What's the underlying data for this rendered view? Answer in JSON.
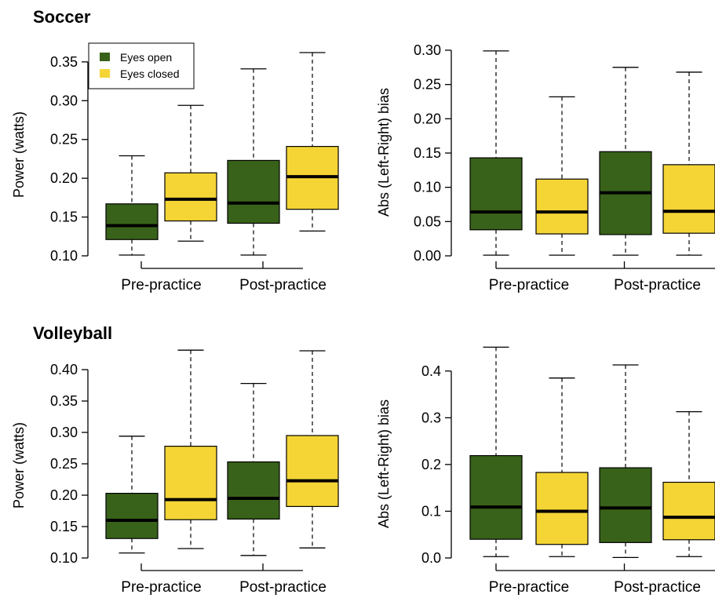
{
  "sections": [
    {
      "title": "Soccer"
    },
    {
      "title": "Volleyball"
    }
  ],
  "colors": {
    "eyes_open": "#386219",
    "eyes_closed": "#f5d535"
  },
  "legend": {
    "eyes_open": "Eyes open",
    "eyes_closed": "Eyes closed"
  },
  "chart_data": [
    {
      "type": "box",
      "section": "Soccer",
      "xlabel": "",
      "ylabel": "Power (watts)",
      "ylim": [
        0.1,
        0.36
      ],
      "yticks": [
        "0.10",
        "0.15",
        "0.20",
        "0.25",
        "0.30",
        "0.35"
      ],
      "categories": [
        "Pre-practice",
        "Post-practice"
      ],
      "legend_position": "top-left",
      "series": [
        {
          "name": "Eyes open",
          "boxes": [
            {
              "min": 0.101,
              "q1": 0.121,
              "median": 0.139,
              "q3": 0.167,
              "max": 0.229
            },
            {
              "min": 0.101,
              "q1": 0.142,
              "median": 0.168,
              "q3": 0.223,
              "max": 0.341
            }
          ]
        },
        {
          "name": "Eyes closed",
          "boxes": [
            {
              "min": 0.119,
              "q1": 0.145,
              "median": 0.173,
              "q3": 0.207,
              "max": 0.294
            },
            {
              "min": 0.132,
              "q1": 0.16,
              "median": 0.202,
              "q3": 0.241,
              "max": 0.362
            }
          ]
        }
      ]
    },
    {
      "type": "box",
      "section": "Soccer",
      "xlabel": "",
      "ylabel": "Abs (Left-Right) bias",
      "ylim": [
        0.0,
        0.3
      ],
      "yticks": [
        "0.00",
        "0.05",
        "0.10",
        "0.15",
        "0.20",
        "0.25",
        "0.30"
      ],
      "categories": [
        "Pre-practice",
        "Post-practice"
      ],
      "series": [
        {
          "name": "Eyes open",
          "boxes": [
            {
              "min": 0.001,
              "q1": 0.038,
              "median": 0.064,
              "q3": 0.143,
              "max": 0.299
            },
            {
              "min": 0.001,
              "q1": 0.031,
              "median": 0.092,
              "q3": 0.152,
              "max": 0.275
            }
          ]
        },
        {
          "name": "Eyes closed",
          "boxes": [
            {
              "min": 0.001,
              "q1": 0.032,
              "median": 0.064,
              "q3": 0.112,
              "max": 0.232
            },
            {
              "min": 0.001,
              "q1": 0.033,
              "median": 0.065,
              "q3": 0.133,
              "max": 0.268
            }
          ]
        }
      ]
    },
    {
      "type": "box",
      "section": "Volleyball",
      "xlabel": "",
      "ylabel": "Power (watts)",
      "ylim": [
        0.1,
        0.43
      ],
      "yticks": [
        "0.10",
        "0.15",
        "0.20",
        "0.25",
        "0.30",
        "0.35",
        "0.40"
      ],
      "categories": [
        "Pre-practice",
        "Post-practice"
      ],
      "series": [
        {
          "name": "Eyes open",
          "boxes": [
            {
              "min": 0.108,
              "q1": 0.131,
              "median": 0.16,
              "q3": 0.203,
              "max": 0.294
            },
            {
              "min": 0.104,
              "q1": 0.162,
              "median": 0.195,
              "q3": 0.253,
              "max": 0.378
            }
          ]
        },
        {
          "name": "Eyes closed",
          "boxes": [
            {
              "min": 0.115,
              "q1": 0.161,
              "median": 0.193,
              "q3": 0.278,
              "max": 0.431
            },
            {
              "min": 0.116,
              "q1": 0.182,
              "median": 0.223,
              "q3": 0.295,
              "max": 0.43
            }
          ]
        }
      ]
    },
    {
      "type": "box",
      "section": "Volleyball",
      "xlabel": "",
      "ylabel": "Abs (Left-Right) bias",
      "ylim": [
        0.0,
        0.45
      ],
      "yticks": [
        "0.0",
        "0.1",
        "0.2",
        "0.3",
        "0.4"
      ],
      "categories": [
        "Pre-practice",
        "Post-practice"
      ],
      "series": [
        {
          "name": "Eyes open",
          "boxes": [
            {
              "min": 0.003,
              "q1": 0.04,
              "median": 0.109,
              "q3": 0.219,
              "max": 0.451
            },
            {
              "min": 0.001,
              "q1": 0.033,
              "median": 0.107,
              "q3": 0.193,
              "max": 0.413
            }
          ]
        },
        {
          "name": "Eyes closed",
          "boxes": [
            {
              "min": 0.003,
              "q1": 0.029,
              "median": 0.1,
              "q3": 0.183,
              "max": 0.385
            },
            {
              "min": 0.003,
              "q1": 0.039,
              "median": 0.087,
              "q3": 0.162,
              "max": 0.313
            }
          ]
        }
      ]
    }
  ]
}
